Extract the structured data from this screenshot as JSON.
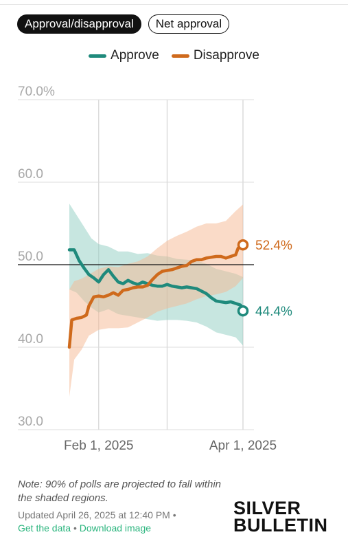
{
  "tabs": [
    {
      "label": "Approval/disapproval",
      "active": true
    },
    {
      "label": "Net approval",
      "active": false
    }
  ],
  "chart_data": {
    "type": "line",
    "title": "",
    "xlabel": "",
    "ylabel": "",
    "ylim": [
      30,
      70
    ],
    "y_ticks": [
      {
        "value": 70,
        "label": "70.0%"
      },
      {
        "value": 60,
        "label": "60.0"
      },
      {
        "value": 50,
        "label": "50.0"
      },
      {
        "value": 40,
        "label": "40.0"
      },
      {
        "value": 30,
        "label": "30.0"
      }
    ],
    "x_ticks": [
      {
        "day": 12,
        "label": "Feb 1, 2025"
      },
      {
        "day": 71,
        "label": "Apr 1, 2025"
      }
    ],
    "x_gridline_days": [
      12,
      40,
      71
    ],
    "x_range": [
      0,
      96
    ],
    "x_start_date": "2025-01-20",
    "reference_line": 50,
    "legend_position": "top-center",
    "series": [
      {
        "name": "Approve",
        "color": "#1f8a7c",
        "band_color": "#8fcdc2",
        "end_label": "44.4%",
        "points": [
          [
            0,
            51.8
          ],
          [
            2,
            51.8
          ],
          [
            4,
            50.5
          ],
          [
            6,
            49.6
          ],
          [
            8,
            48.8
          ],
          [
            10,
            48.4
          ],
          [
            12,
            47.9
          ],
          [
            14,
            48.8
          ],
          [
            16,
            49.4
          ],
          [
            18,
            48.6
          ],
          [
            20,
            47.9
          ],
          [
            22,
            47.7
          ],
          [
            24,
            48.1
          ],
          [
            26,
            47.8
          ],
          [
            28,
            47.6
          ],
          [
            30,
            47.9
          ],
          [
            32,
            47.7
          ],
          [
            34,
            47.5
          ],
          [
            36,
            47.4
          ],
          [
            38,
            47.4
          ],
          [
            40,
            47.6
          ],
          [
            42,
            47.4
          ],
          [
            44,
            47.3
          ],
          [
            46,
            47.2
          ],
          [
            48,
            47.3
          ],
          [
            50,
            47.2
          ],
          [
            52,
            47.1
          ],
          [
            54,
            46.8
          ],
          [
            56,
            46.5
          ],
          [
            58,
            46.0
          ],
          [
            60,
            45.6
          ],
          [
            62,
            45.5
          ],
          [
            64,
            45.4
          ],
          [
            66,
            45.5
          ],
          [
            68,
            45.3
          ],
          [
            70,
            45.1
          ],
          [
            71,
            44.4
          ]
        ],
        "band_upper": [
          [
            0,
            57.4
          ],
          [
            3,
            56.0
          ],
          [
            6,
            54.6
          ],
          [
            9,
            53.2
          ],
          [
            12,
            52.5
          ],
          [
            16,
            52.2
          ],
          [
            20,
            51.6
          ],
          [
            24,
            51.6
          ],
          [
            28,
            51.3
          ],
          [
            32,
            51.4
          ],
          [
            36,
            51.1
          ],
          [
            40,
            51.0
          ],
          [
            44,
            50.7
          ],
          [
            48,
            50.6
          ],
          [
            52,
            50.5
          ],
          [
            56,
            50.1
          ],
          [
            60,
            49.5
          ],
          [
            64,
            49.2
          ],
          [
            68,
            48.9
          ],
          [
            71,
            48.5
          ]
        ],
        "band_lower": [
          [
            0,
            47.0
          ],
          [
            3,
            46.6
          ],
          [
            6,
            45.6
          ],
          [
            9,
            44.8
          ],
          [
            12,
            44.2
          ],
          [
            16,
            44.6
          ],
          [
            20,
            44.0
          ],
          [
            24,
            43.8
          ],
          [
            28,
            43.6
          ],
          [
            32,
            43.4
          ],
          [
            36,
            43.2
          ],
          [
            40,
            43.3
          ],
          [
            44,
            43.3
          ],
          [
            48,
            43.2
          ],
          [
            52,
            43.0
          ],
          [
            56,
            42.5
          ],
          [
            60,
            41.8
          ],
          [
            64,
            41.5
          ],
          [
            68,
            41.2
          ],
          [
            71,
            40.2
          ]
        ]
      },
      {
        "name": "Disapprove",
        "color": "#cf6a1c",
        "band_color": "#f6b892",
        "end_label": "52.4%",
        "points": [
          [
            0,
            40.0
          ],
          [
            1,
            43.3
          ],
          [
            3,
            43.5
          ],
          [
            5,
            43.6
          ],
          [
            7,
            43.9
          ],
          [
            8,
            45.0
          ],
          [
            10,
            46.1
          ],
          [
            12,
            46.2
          ],
          [
            14,
            46.1
          ],
          [
            16,
            46.3
          ],
          [
            18,
            46.6
          ],
          [
            20,
            46.3
          ],
          [
            22,
            46.9
          ],
          [
            24,
            47.0
          ],
          [
            26,
            47.2
          ],
          [
            28,
            47.3
          ],
          [
            30,
            47.3
          ],
          [
            32,
            47.5
          ],
          [
            34,
            48.2
          ],
          [
            36,
            48.8
          ],
          [
            38,
            49.2
          ],
          [
            40,
            49.3
          ],
          [
            42,
            49.4
          ],
          [
            44,
            49.6
          ],
          [
            46,
            49.8
          ],
          [
            48,
            49.9
          ],
          [
            50,
            50.4
          ],
          [
            52,
            50.6
          ],
          [
            54,
            50.6
          ],
          [
            56,
            50.8
          ],
          [
            58,
            50.9
          ],
          [
            60,
            51.0
          ],
          [
            62,
            51.0
          ],
          [
            64,
            50.8
          ],
          [
            66,
            51.0
          ],
          [
            68,
            51.2
          ],
          [
            69,
            52.0
          ],
          [
            71,
            52.4
          ]
        ],
        "band_upper": [
          [
            0,
            47.0
          ],
          [
            2,
            48.0
          ],
          [
            5,
            48.3
          ],
          [
            8,
            48.8
          ],
          [
            12,
            49.5
          ],
          [
            16,
            49.8
          ],
          [
            20,
            49.7
          ],
          [
            24,
            50.1
          ],
          [
            28,
            50.4
          ],
          [
            32,
            51.0
          ],
          [
            36,
            52.0
          ],
          [
            40,
            52.9
          ],
          [
            44,
            53.5
          ],
          [
            48,
            54.0
          ],
          [
            52,
            54.6
          ],
          [
            56,
            55.0
          ],
          [
            60,
            55.0
          ],
          [
            64,
            55.3
          ],
          [
            68,
            56.5
          ],
          [
            71,
            57.3
          ]
        ],
        "band_lower": [
          [
            0,
            34.0
          ],
          [
            2,
            38.5
          ],
          [
            5,
            39.7
          ],
          [
            8,
            41.4
          ],
          [
            12,
            42.1
          ],
          [
            16,
            42.3
          ],
          [
            20,
            42.3
          ],
          [
            24,
            42.4
          ],
          [
            28,
            43.0
          ],
          [
            32,
            43.6
          ],
          [
            36,
            44.3
          ],
          [
            40,
            44.7
          ],
          [
            44,
            45.0
          ],
          [
            48,
            45.3
          ],
          [
            52,
            45.8
          ],
          [
            56,
            46.2
          ],
          [
            60,
            46.4
          ],
          [
            64,
            46.7
          ],
          [
            68,
            47.4
          ],
          [
            71,
            48.4
          ]
        ]
      }
    ]
  },
  "note": "Note: 90% of polls are projected to fall within the shaded regions.",
  "updated": "Updated April 26, 2025 at 12:40 PM •",
  "links": {
    "get_data": "Get the data",
    "separator": "•",
    "download": "Download image"
  },
  "brand": {
    "line1": "SILVER",
    "line2": "BULLETIN"
  }
}
